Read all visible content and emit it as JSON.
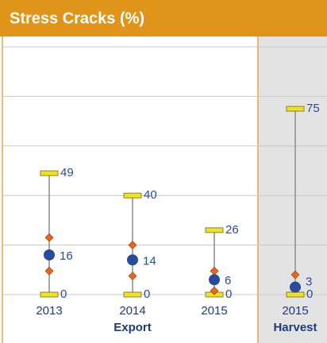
{
  "chart_data": {
    "type": "range",
    "title": "Stress Cracks (%)",
    "categories": [
      "2013",
      "2014",
      "2015",
      "2015"
    ],
    "group_labels": [
      null,
      "Export",
      null,
      "Harvest"
    ],
    "high": [
      49,
      40,
      26,
      75
    ],
    "low": [
      0,
      0,
      0,
      0
    ],
    "mean": [
      16,
      14,
      6,
      3
    ],
    "diamond_high": [
      23,
      20,
      9.5,
      8
    ],
    "diamond_low": [
      9.5,
      7.5,
      1.5,
      null
    ],
    "ylim": [
      0,
      100
    ],
    "yticks": [
      0,
      20,
      40,
      60,
      80,
      100
    ],
    "grid": true,
    "title_color": "#e0941a",
    "cap_color": "#f2e21e",
    "whisker_color": "#8c8c8c",
    "mean_color": "#2a4a9c",
    "diamond_color": "#e8661c",
    "label_color": "#2a4a9c"
  }
}
